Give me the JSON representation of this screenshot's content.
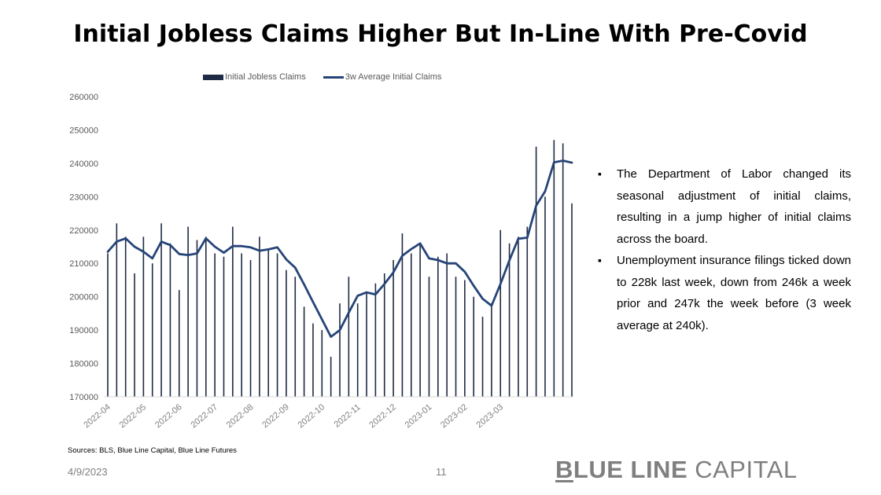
{
  "title": "Initial Jobless Claims Higher But In-Line With Pre-Covid",
  "legend": {
    "bar_label": "Initial Jobless Claims",
    "line_label": "3w Average Initial Claims"
  },
  "bullets": [
    "The Department of Labor changed its seasonal adjustment of initial claims, resulting in a jump higher of initial claims across the board.",
    "Unemployment insurance filings ticked down to 228k last week, down from 246k a week prior and 247k the week before (3 week average at 240k)."
  ],
  "sources": "Sources: BLS, Blue Line Capital, Blue Line Futures",
  "date": "4/9/2023",
  "page_number": "11",
  "brand": {
    "first_letter": "B",
    "bold_rest": "LUE LINE",
    "light": " CAPITAL"
  },
  "colors": {
    "bar": "#1f2a44",
    "line": "#264478",
    "axis_text": "#595959",
    "brand": "#7f7f7f"
  },
  "chart_data": {
    "type": "bar",
    "ylim": [
      170000,
      260000
    ],
    "yticks": [
      170000,
      180000,
      190000,
      200000,
      210000,
      220000,
      230000,
      240000,
      250000,
      260000
    ],
    "xtick_labels": [
      "2022-04",
      "2022-05",
      "2022-06",
      "2022-07",
      "2022-08",
      "2022-09",
      "2022-10",
      "2022-11",
      "2022-12",
      "2023-01",
      "2023-02",
      "2023-03"
    ],
    "xtick_indices": [
      0,
      4,
      8,
      12,
      16,
      20,
      24,
      28,
      32,
      36,
      40,
      44
    ],
    "legend_position": "top-center",
    "grid": false,
    "series": [
      {
        "name": "Initial Jobless Claims",
        "type": "bar",
        "values": [
          213000,
          222000,
          218000,
          207000,
          218000,
          210000,
          222000,
          216000,
          202000,
          221000,
          217000,
          218000,
          213000,
          212000,
          221000,
          213000,
          211000,
          218000,
          214000,
          213000,
          208000,
          206000,
          197000,
          192000,
          190000,
          182000,
          198000,
          206000,
          198000,
          201000,
          204000,
          207000,
          211000,
          219000,
          213000,
          216000,
          206000,
          212000,
          213000,
          206000,
          205000,
          200000,
          194000,
          198000,
          220000,
          216000,
          218000,
          221000,
          245000,
          230000,
          247000,
          246000,
          228000
        ]
      },
      {
        "name": "3w Average Initial Claims",
        "type": "line",
        "values": [
          213500,
          216500,
          217500,
          215000,
          213500,
          211500,
          216500,
          215500,
          212800,
          212500,
          213000,
          217500,
          215000,
          213200,
          215200,
          215200,
          214800,
          213800,
          214200,
          214800,
          211200,
          208700,
          203700,
          198400,
          193200,
          188000,
          190000,
          195200,
          200300,
          201300,
          200700,
          203800,
          207300,
          212300,
          214300,
          216000,
          211500,
          211000,
          210000,
          210000,
          207500,
          203300,
          199400,
          197300,
          203800,
          210900,
          217400,
          217700,
          227300,
          231600,
          240300,
          240800,
          240200
        ]
      }
    ]
  }
}
